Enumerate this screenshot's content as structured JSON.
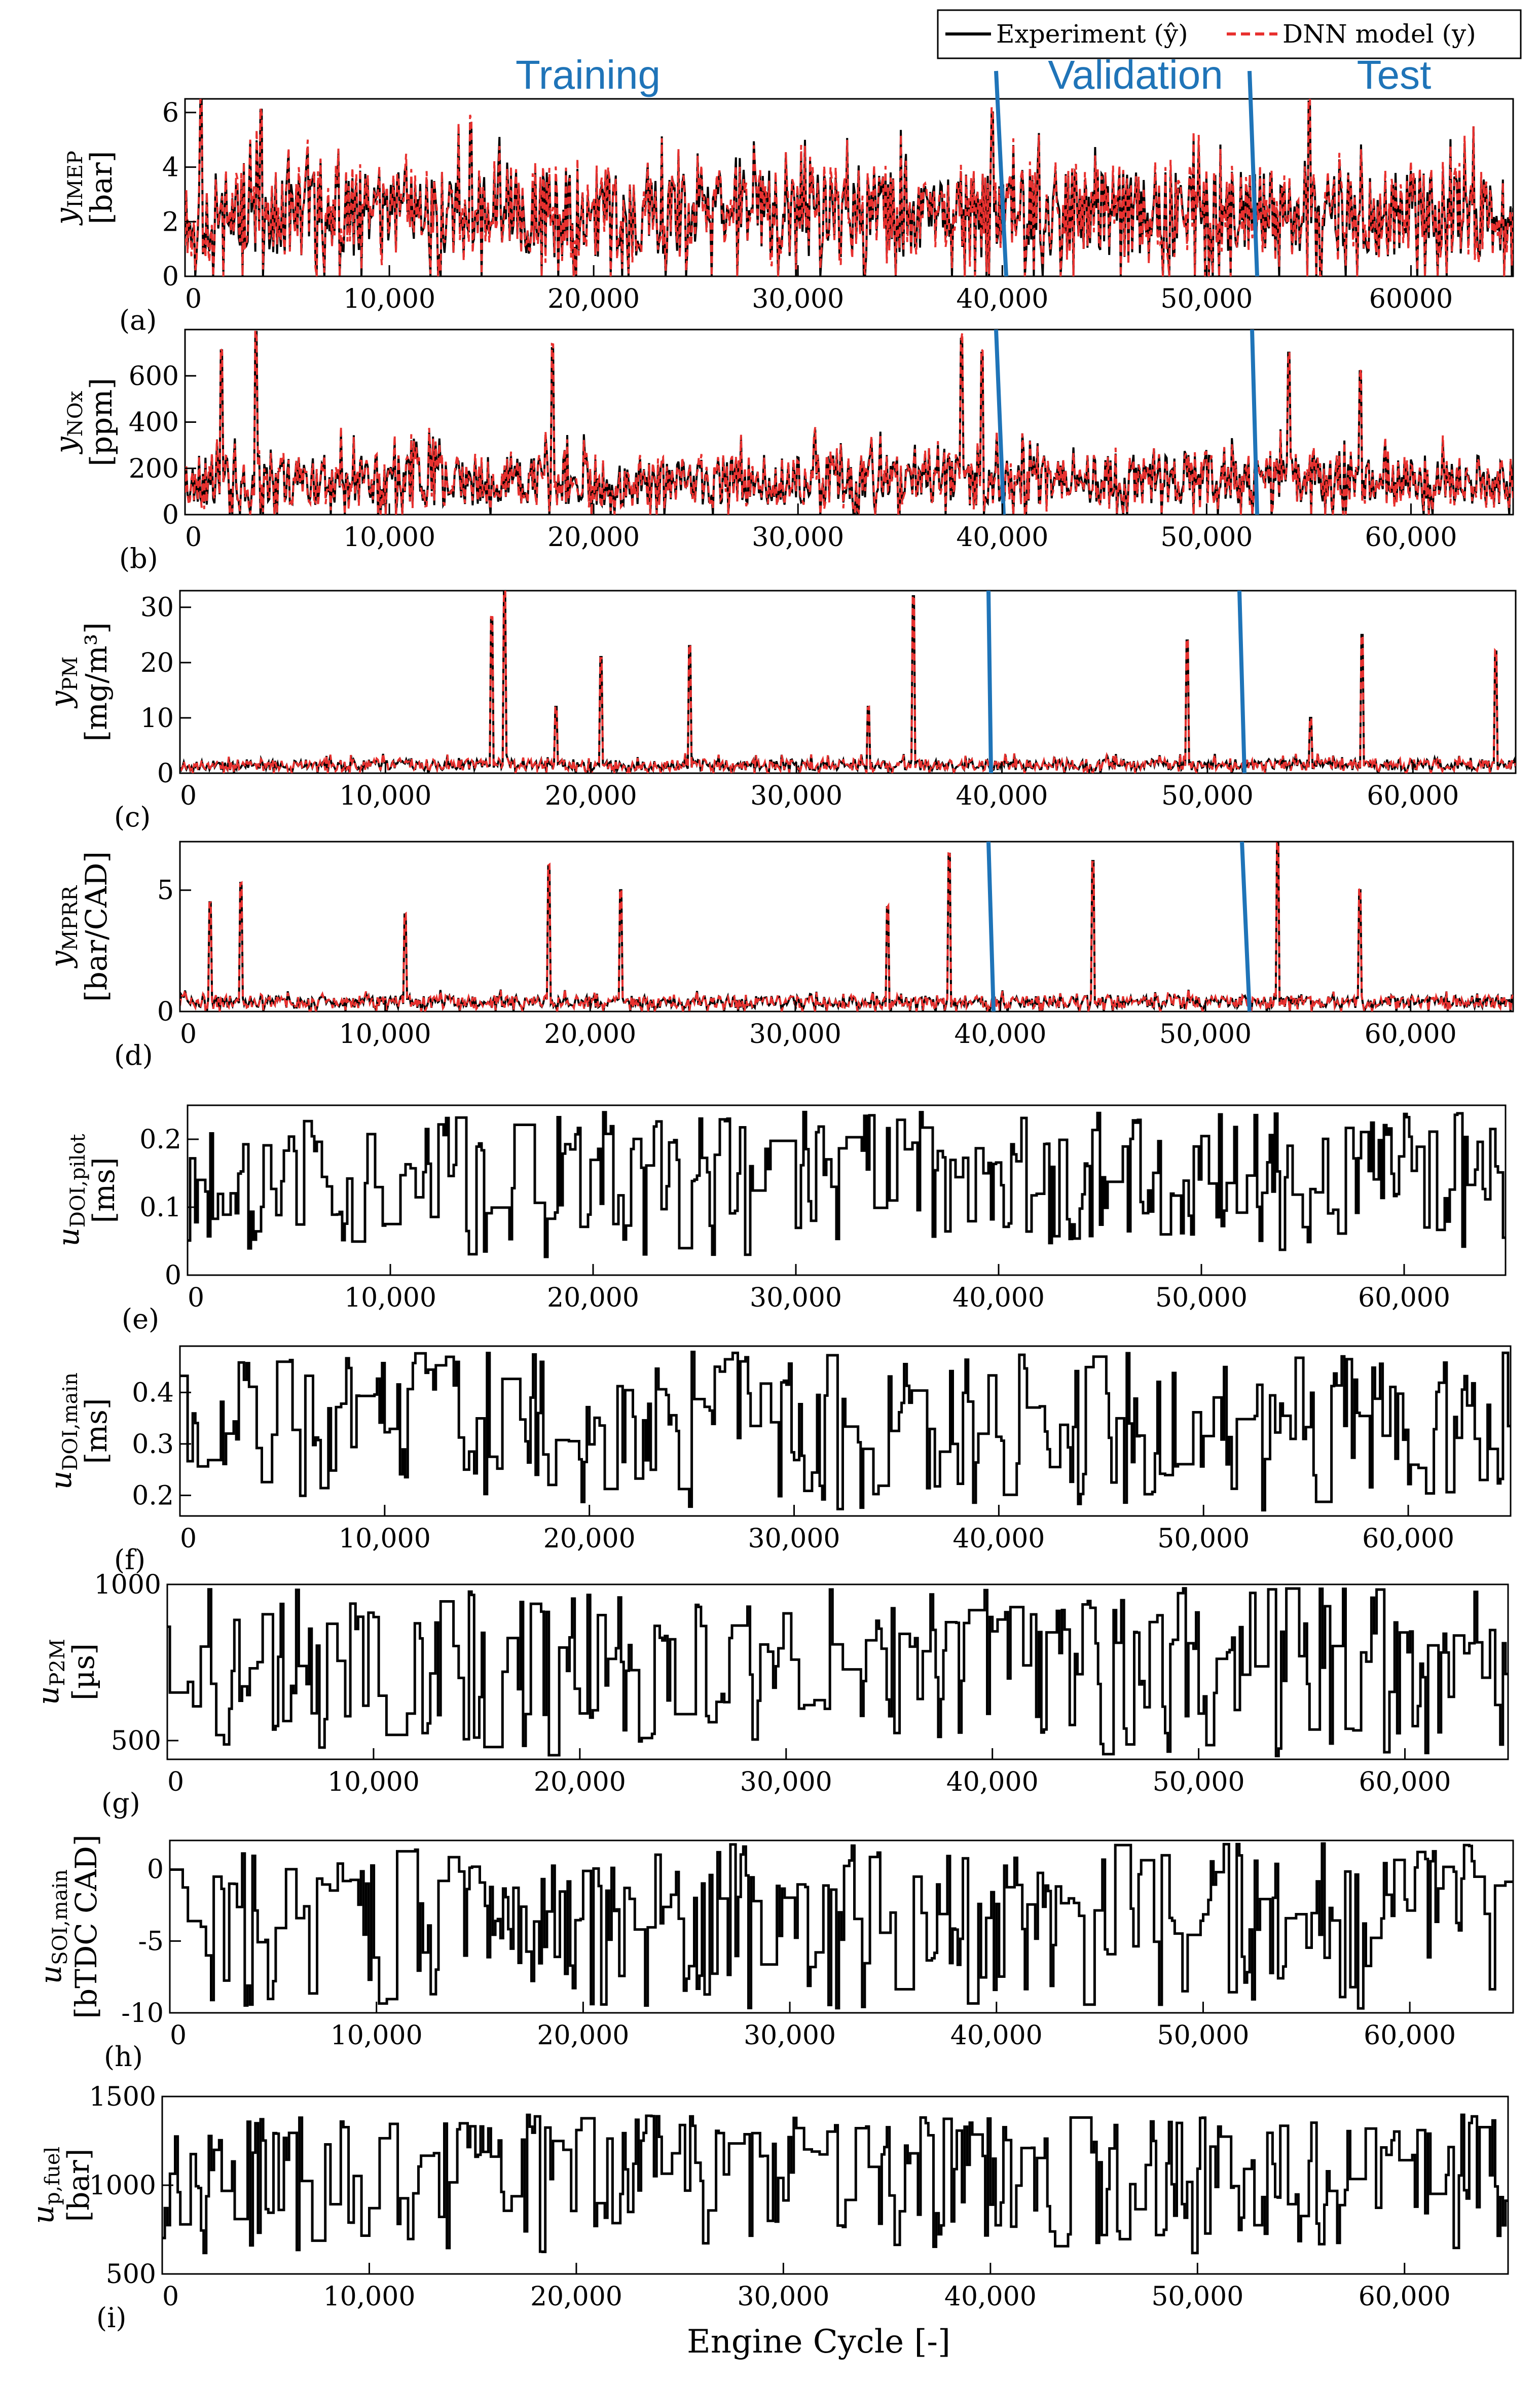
{
  "chart_data": {
    "type": "line",
    "legend": {
      "placement": "top-right",
      "entries": [
        {
          "label": "Experiment (ŷ)",
          "color": "#000000",
          "style": "solid"
        },
        {
          "label": "DNN model (y)",
          "color": "#e8312f",
          "style": "dashed"
        }
      ]
    },
    "segments": {
      "labels": [
        "Training",
        "Validation",
        "Test"
      ],
      "boundaries": [
        40000,
        52500
      ],
      "color": "#1f74b8"
    },
    "xlabel": "Engine Cycle [-]",
    "xlim": [
      0,
      65000
    ],
    "panels": [
      {
        "id": "a",
        "label": "(a)",
        "ylabel_line1": "y",
        "ylabel_sub": "IMEP",
        "ylabel_line2": "[bar]",
        "ylim": [
          0,
          6.5
        ],
        "yticks": [
          "0",
          "2",
          "4",
          "6"
        ],
        "ytick_values": [
          0,
          2,
          4,
          6
        ],
        "xticks": [
          "0",
          "10,000",
          "20,000",
          "30,000",
          "40,000",
          "50,000",
          "60000"
        ],
        "series": [
          "Experiment (ŷ)",
          "DNN model (y)"
        ],
        "base": 2.3,
        "spread": 1.6,
        "seed": 11
      },
      {
        "id": "b",
        "label": "(b)",
        "ylabel_line1": "y",
        "ylabel_sub": "NOx",
        "ylabel_line2": "[ppm]",
        "ylim": [
          0,
          800
        ],
        "yticks": [
          "0",
          "200",
          "400",
          "600"
        ],
        "ytick_values": [
          0,
          200,
          400,
          600
        ],
        "xticks": [
          "0",
          "10,000",
          "20,000",
          "30,000",
          "40,000",
          "50,000",
          "60,000"
        ],
        "series": [
          "Experiment (ŷ)",
          "DNN model (y)"
        ],
        "base": 150,
        "spread": 110,
        "seed": 23
      },
      {
        "id": "c",
        "label": "(c)",
        "ylabel_line1": "y",
        "ylabel_sub": "PM",
        "ylabel_line2": "[mg/m³]",
        "ylim": [
          0,
          33
        ],
        "yticks": [
          "0",
          "10",
          "20",
          "30"
        ],
        "ytick_values": [
          0,
          10,
          20,
          30
        ],
        "xticks": [
          "0",
          "10,000",
          "20,000",
          "30,000",
          "40,000",
          "50,000",
          "60,000"
        ],
        "series": [
          "Experiment (ŷ)",
          "DNN model (y)"
        ],
        "base": 1.5,
        "spread": 1.0,
        "seed": 37
      },
      {
        "id": "d",
        "label": "(d)",
        "ylabel_line1": "y",
        "ylabel_sub": "MPRR",
        "ylabel_line2": "[bar/CAD]",
        "ylim": [
          0,
          7
        ],
        "yticks": [
          "0",
          "5"
        ],
        "ytick_values": [
          0,
          5
        ],
        "xticks": [
          "0",
          "10,000",
          "20,000",
          "30,000",
          "40,000",
          "50,000",
          "60,000"
        ],
        "series": [
          "Experiment (ŷ)",
          "DNN model (y)"
        ],
        "base": 0.4,
        "spread": 0.25,
        "seed": 41
      },
      {
        "id": "e",
        "label": "(e)",
        "ylabel_line1": "u",
        "ylabel_sub": "DOI,pilot",
        "ylabel_line2": "[ms]",
        "ylim": [
          0,
          0.25
        ],
        "yticks": [
          "0",
          "0.1",
          "0.2"
        ],
        "ytick_values": [
          0,
          0.1,
          0.2
        ],
        "xticks": [
          "0",
          "10,000",
          "20,000",
          "30,000",
          "40,000",
          "50,000",
          "60,000"
        ],
        "series": [
          "Experiment (ŷ)"
        ],
        "range": [
          0.02,
          0.24
        ],
        "seed": 53
      },
      {
        "id": "f",
        "label": "(f)",
        "ylabel_line1": "u",
        "ylabel_sub": "DOI,main",
        "ylabel_line2": "[ms]",
        "ylim": [
          0.16,
          0.49
        ],
        "yticks": [
          "0.2",
          "0.3",
          "0.4"
        ],
        "ytick_values": [
          0.2,
          0.3,
          0.4
        ],
        "xticks": [
          "0",
          "10,000",
          "20,000",
          "30,000",
          "40,000",
          "50,000",
          "60,000"
        ],
        "series": [
          "Experiment (ŷ)"
        ],
        "range": [
          0.17,
          0.48
        ],
        "seed": 61
      },
      {
        "id": "g",
        "label": "(g)",
        "ylabel_line1": "u",
        "ylabel_sub": "P2M",
        "ylabel_line2": "[µs]",
        "ylim": [
          440,
          1000
        ],
        "yticks": [
          "500",
          "1000"
        ],
        "ytick_values": [
          500,
          1000
        ],
        "xticks": [
          "0",
          "10,000",
          "20,000",
          "30,000",
          "40,000",
          "50,000",
          "60,000"
        ],
        "series": [
          "Experiment (ŷ)"
        ],
        "range": [
          450,
          990
        ],
        "seed": 71
      },
      {
        "id": "h",
        "label": "(h)",
        "ylabel_line1": "u",
        "ylabel_sub": "SOI,main",
        "ylabel_line2": "[bTDC CAD]",
        "ylim": [
          -10,
          2
        ],
        "yticks": [
          "-10",
          "-5",
          "0"
        ],
        "ytick_values": [
          -10,
          -5,
          0
        ],
        "xticks": [
          "0",
          "10,000",
          "20,000",
          "30,000",
          "40,000",
          "50,000",
          "60,000"
        ],
        "series": [
          "Experiment (ŷ)"
        ],
        "range": [
          -9.8,
          1.8
        ],
        "seed": 83
      },
      {
        "id": "i",
        "label": "(i)",
        "ylabel_line1": "u",
        "ylabel_sub": "p,fuel",
        "ylabel_line2": "[bar]",
        "ylim": [
          500,
          1500
        ],
        "yticks": [
          "500",
          "1000",
          "1500"
        ],
        "ytick_values": [
          500,
          1000,
          1500
        ],
        "xticks": [
          "0",
          "10,000",
          "20,000",
          "30,000",
          "40,000",
          "50,000",
          "60,000"
        ],
        "series": [
          "Experiment (ŷ)"
        ],
        "range": [
          600,
          1400
        ],
        "seed": 97
      }
    ],
    "peaks": {
      "a": [
        [
          800,
          6.6
        ],
        [
          3700,
          6.1
        ],
        [
          14000,
          5.6
        ],
        [
          39500,
          6.0
        ],
        [
          55000,
          6.4
        ]
      ],
      "b": [
        [
          1800,
          710
        ],
        [
          3500,
          790
        ],
        [
          18000,
          720
        ],
        [
          38000,
          760
        ],
        [
          39000,
          700
        ],
        [
          54000,
          700
        ],
        [
          57500,
          620
        ]
      ],
      "c": [
        [
          15200,
          28
        ],
        [
          15800,
          33
        ],
        [
          18300,
          12
        ],
        [
          20500,
          21
        ],
        [
          24800,
          23
        ],
        [
          33500,
          12
        ],
        [
          35700,
          32
        ],
        [
          49000,
          24
        ],
        [
          55000,
          10
        ],
        [
          57500,
          25
        ],
        [
          64000,
          22
        ]
      ],
      "d": [
        [
          1500,
          4.5
        ],
        [
          3000,
          5.3
        ],
        [
          11000,
          4.0
        ],
        [
          18000,
          6.0
        ],
        [
          21500,
          5.0
        ],
        [
          34500,
          4.3
        ],
        [
          37500,
          6.5
        ],
        [
          44500,
          6.2
        ],
        [
          53500,
          7.0
        ],
        [
          57500,
          5.0
        ]
      ]
    }
  }
}
